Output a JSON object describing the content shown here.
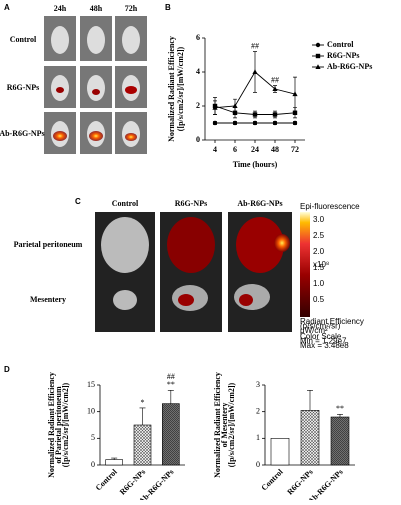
{
  "panel_letters": [
    "A",
    "B",
    "C",
    "D"
  ],
  "panel_a": {
    "columns": [
      "24h",
      "48h",
      "72h"
    ],
    "rows": [
      "Control",
      "R6G-NPs",
      "Ab-R6G-NPs"
    ]
  },
  "panel_c": {
    "columns": [
      "Control",
      "R6G-NPs",
      "Ab-R6G-NPs"
    ],
    "rows": [
      "Parietal peritoneum",
      "Mesentery"
    ],
    "colorbar": {
      "title": "Epi-fluorescence",
      "ticks": [
        "3.0",
        "2.5",
        "2.0",
        "1.5",
        "1.0",
        "0.5"
      ],
      "scale": "x10⁸",
      "unit_lines": [
        "Radiant Efficiency",
        "(p/s/cm²/sr)",
        "μW/cm²"
      ],
      "scale_lines": [
        "Color Scale",
        "Min = 1.29e7",
        "Max = 3.48e8"
      ]
    }
  },
  "chart_data": [
    {
      "type": "line",
      "y_label": [
        "Normalized Radiant Efficiency",
        "([p/s/cm2/sr]/[mW/cm2])"
      ],
      "x_label": "Time (hours)",
      "categories": [
        "4",
        "6",
        "24",
        "48",
        "72"
      ],
      "ylim": [
        0,
        6
      ],
      "yticks": [
        0,
        2,
        4,
        6
      ],
      "series": [
        {
          "name": "Control",
          "color": "#000000",
          "values": [
            1,
            1,
            1,
            1,
            1
          ],
          "errors": [
            0.1,
            0.1,
            0.1,
            0.1,
            0.1
          ]
        },
        {
          "name": "R6G-NPs",
          "color": "#000000",
          "values": [
            2,
            1.6,
            1.5,
            1.5,
            1.6
          ],
          "errors": [
            0.5,
            0.3,
            0.2,
            0.2,
            0.3
          ]
        },
        {
          "name": "Ab-R6G-NPs",
          "color": "#000000",
          "values": [
            1.9,
            2,
            4,
            3,
            2.7
          ],
          "errors": [
            0.4,
            0.4,
            1.2,
            0.2,
            1
          ]
        }
      ],
      "annotations": [
        {
          "text": "##",
          "category": "24"
        },
        {
          "text": "##",
          "category": "48"
        }
      ]
    },
    {
      "type": "bar",
      "y_label": [
        "Normalized Radiant Efficiency",
        "of Parietal peritoneum",
        "([p/s/cm2/sr]/[mW/cm2])"
      ],
      "categories": [
        "Control",
        "R6G-NPs",
        "Ab-R6G-NPs"
      ],
      "values": [
        1,
        7.5,
        11.5
      ],
      "errors": [
        0.3,
        3.2,
        2.5
      ],
      "ylim": [
        0,
        15
      ],
      "yticks": [
        0,
        5,
        10,
        15
      ],
      "annotations": [
        {
          "text": "*",
          "category": "R6G-NPs"
        },
        {
          "text": "**",
          "category": "Ab-R6G-NPs"
        },
        {
          "text": "##",
          "category": "Ab-R6G-NPs"
        }
      ]
    },
    {
      "type": "bar",
      "y_label": [
        "Normalized Radiant Efficiency",
        "of Mesentery",
        "([p/s/cm2/sr]/[mW/cm2])"
      ],
      "categories": [
        "Control",
        "R6G-NPs",
        "Ab-R6G-NPs"
      ],
      "values": [
        1,
        2.05,
        1.8
      ],
      "errors": [
        0,
        0.75,
        0.1
      ],
      "ylim": [
        0,
        3
      ],
      "yticks": [
        0,
        1,
        2,
        3
      ],
      "annotations": [
        {
          "text": "**",
          "category": "Ab-R6G-NPs"
        }
      ]
    }
  ]
}
